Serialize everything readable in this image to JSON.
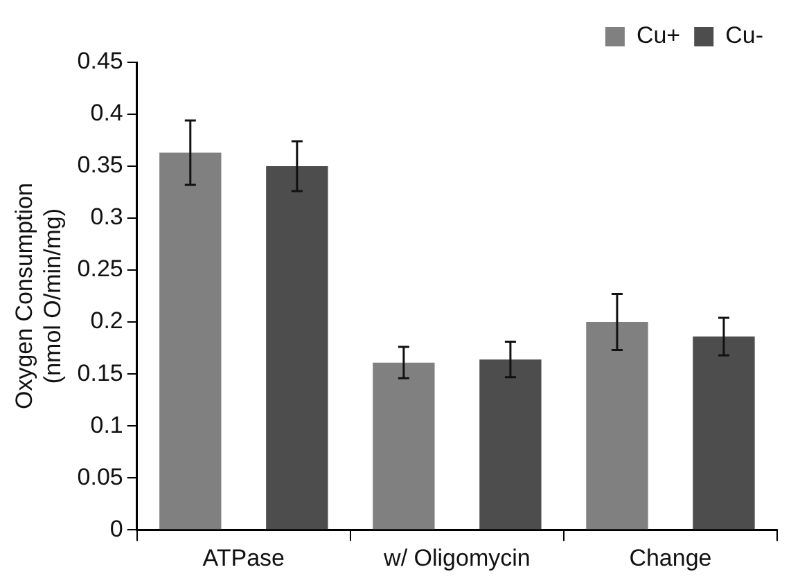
{
  "chart_data": {
    "type": "bar",
    "ylabel": "Oxygen Consumption\n(nmol O/min/mg)",
    "categories": [
      "ATPase",
      "w/ Oligomycin",
      "Change"
    ],
    "series": [
      {
        "name": "Cu+",
        "color": "#808080",
        "values": [
          0.363,
          0.161,
          0.2
        ],
        "errors": [
          0.031,
          0.015,
          0.027
        ]
      },
      {
        "name": "Cu-",
        "color": "#4d4d4d",
        "values": [
          0.35,
          0.164,
          0.186
        ],
        "errors": [
          0.024,
          0.017,
          0.018
        ]
      }
    ],
    "ylim": [
      0,
      0.45
    ],
    "yticks": [
      0,
      0.05,
      0.1,
      0.15,
      0.2,
      0.25,
      0.3,
      0.35,
      0.4,
      0.45
    ],
    "grid": false,
    "legend": "top right"
  }
}
